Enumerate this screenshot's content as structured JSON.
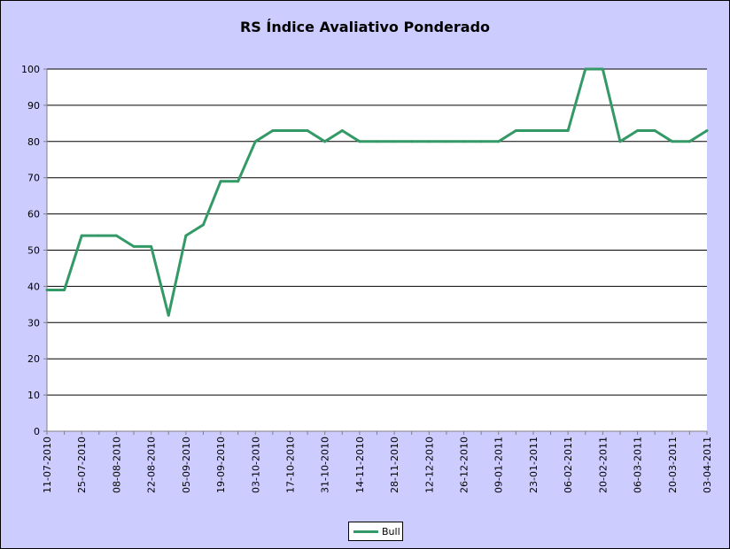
{
  "chart_data": {
    "type": "line",
    "title": "RS Índice Avaliativo Ponderado",
    "xlabel": "",
    "ylabel": "",
    "ylim": [
      0,
      100
    ],
    "yticks": [
      0,
      10,
      20,
      30,
      40,
      50,
      60,
      70,
      80,
      90,
      100
    ],
    "grid": true,
    "legend": "bottom-center",
    "x_tick_labels": [
      "11-07-2010",
      "25-07-2010",
      "08-08-2010",
      "22-08-2010",
      "05-09-2010",
      "19-09-2010",
      "03-10-2010",
      "17-10-2010",
      "31-10-2010",
      "14-11-2010",
      "28-11-2010",
      "12-12-2010",
      "26-12-2010",
      "09-01-2011",
      "23-01-2011",
      "06-02-2011",
      "20-02-2011",
      "06-03-2011",
      "20-03-2011",
      "03-04-2011"
    ],
    "x": [
      "11-07-2010",
      "18-07-2010",
      "25-07-2010",
      "01-08-2010",
      "08-08-2010",
      "15-08-2010",
      "22-08-2010",
      "29-08-2010",
      "05-09-2010",
      "12-09-2010",
      "19-09-2010",
      "26-09-2010",
      "03-10-2010",
      "10-10-2010",
      "17-10-2010",
      "24-10-2010",
      "31-10-2010",
      "07-11-2010",
      "14-11-2010",
      "21-11-2010",
      "28-11-2010",
      "05-12-2010",
      "12-12-2010",
      "19-12-2010",
      "26-12-2010",
      "02-01-2011",
      "09-01-2011",
      "16-01-2011",
      "23-01-2011",
      "30-01-2011",
      "06-02-2011",
      "13-02-2011",
      "20-02-2011",
      "27-02-2011",
      "06-03-2011",
      "13-03-2011",
      "20-03-2011",
      "27-03-2011",
      "03-04-2011"
    ],
    "series": [
      {
        "name": "Bull",
        "color": "#339966",
        "values": [
          39,
          39,
          54,
          54,
          54,
          51,
          51,
          32,
          54,
          57,
          69,
          69,
          80,
          83,
          83,
          83,
          80,
          83,
          80,
          80,
          80,
          80,
          80,
          80,
          80,
          80,
          80,
          83,
          83,
          83,
          83,
          100,
          100,
          80,
          83,
          83,
          80,
          80,
          83
        ]
      }
    ],
    "colors": {
      "background": "#ccccff",
      "plot_area": "#ffffff",
      "gridline": "#000000",
      "line": "#339966"
    }
  }
}
